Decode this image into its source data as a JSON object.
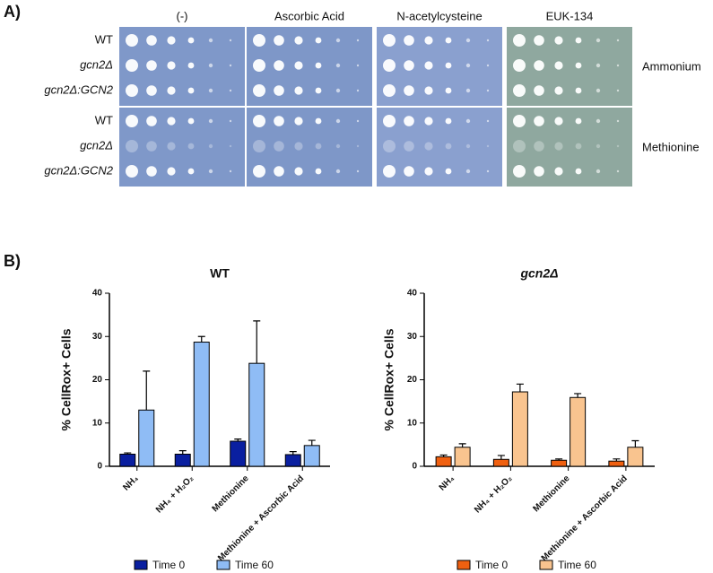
{
  "panel_a": {
    "label": "A)",
    "columns": [
      "(-)",
      "Ascorbic Acid",
      "N-acetylcysteine",
      "EUK-134"
    ],
    "groups": [
      {
        "condition": "Ammonium",
        "rows": [
          "WT",
          "gcn2Δ",
          "gcn2Δ:GCN2"
        ]
      },
      {
        "condition": "Methionine",
        "rows": [
          "WT",
          "gcn2Δ",
          "gcn2Δ:GCN2"
        ]
      }
    ]
  },
  "panel_b": {
    "label": "B)"
  },
  "chart_data": [
    {
      "type": "bar",
      "title": "WT",
      "y_label": "% CellRox+ Cells",
      "categories": [
        "NH₄",
        "NH₄ + H₂O₂",
        "Methionine",
        "Methionine + Ascorbic Acid"
      ],
      "series": [
        {
          "name": "Time 0",
          "color": "#0a1fa0",
          "values": [
            2.8,
            2.8,
            5.8,
            2.7
          ],
          "errors": [
            0.3,
            0.8,
            0.5,
            0.7
          ]
        },
        {
          "name": "Time 60",
          "color": "#8fbcf5",
          "values": [
            13,
            28.7,
            23.8,
            4.8
          ],
          "errors": [
            9,
            1.3,
            9.8,
            1.2
          ]
        }
      ],
      "ylim": [
        0,
        40
      ],
      "yticks": [
        0,
        10,
        20,
        30,
        40
      ],
      "legend": "bottom"
    },
    {
      "type": "bar",
      "title": "gcn2Δ",
      "y_label": "% CellRox+ Cells",
      "categories": [
        "NH₄",
        "NH₄ + H₂O₂",
        "Methionine",
        "Methionine + Ascorbic Acid"
      ],
      "series": [
        {
          "name": "Time 0",
          "color": "#f06010",
          "values": [
            2.2,
            1.6,
            1.4,
            1.2
          ],
          "errors": [
            0.4,
            0.9,
            0.3,
            0.5
          ]
        },
        {
          "name": "Time 60",
          "color": "#f9c48f",
          "values": [
            4.4,
            17.2,
            15.9,
            4.4
          ],
          "errors": [
            0.8,
            1.8,
            0.9,
            1.5
          ]
        }
      ],
      "ylim": [
        0,
        40
      ],
      "yticks": [
        0,
        10,
        20,
        30,
        40
      ],
      "legend": "bottom"
    }
  ]
}
